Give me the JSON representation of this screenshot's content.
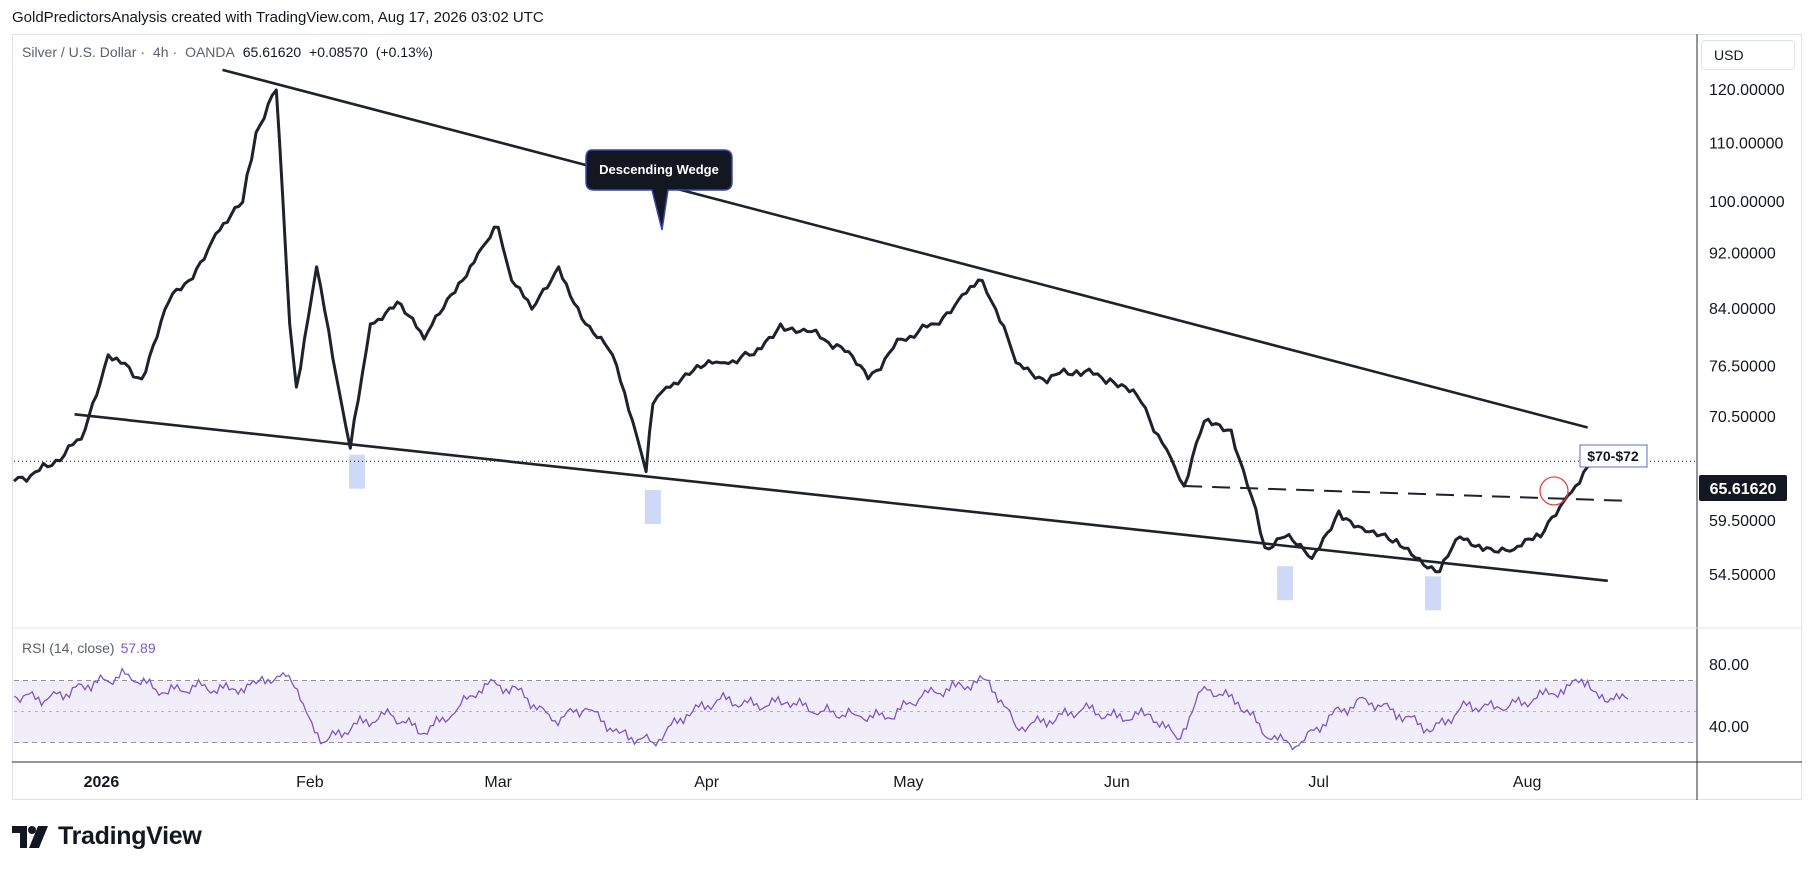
{
  "header": {
    "credit": "GoldPredictorsAnalysis created with TradingView.com, Aug 17, 2026 03:02 UTC"
  },
  "symbol": {
    "name": "Silver / U.S. Dollar",
    "interval": "4h",
    "source": "OANDA",
    "last": "65.61620",
    "change": "+0.08570",
    "change_pct": "(+0.13%)"
  },
  "currency": "USD",
  "annotations": {
    "wedge_label": "Descending Wedge",
    "target_label": "$70-$72"
  },
  "price_axis": {
    "ticks": [
      "120.00000",
      "110.00000",
      "100.00000",
      "92.00000",
      "84.00000",
      "76.50000",
      "70.50000",
      "59.50000",
      "54.50000"
    ],
    "last_price_label": "65.61620"
  },
  "rsi": {
    "legend": "RSI (14, close)",
    "value": "57.89",
    "ticks": [
      "80.00",
      "40.00"
    ]
  },
  "time_axis": {
    "labels": [
      "2026",
      "Feb",
      "Mar",
      "Apr",
      "May",
      "Jun",
      "Jul",
      "Aug"
    ]
  },
  "footer": {
    "brand": "TradingView",
    "logo_icon": "tradingview-logo-icon"
  },
  "colors": {
    "price_line": "#1e222d",
    "rsi_line": "#7e57c2",
    "rsi_band": "#7e57c2",
    "highlight": "#b9c9f5",
    "last_price_bg": "#131722",
    "target_border": "#5b6bd6",
    "breakout_circle": "#e53935"
  },
  "chart_data": [
    {
      "type": "line",
      "title": "Silver / U.S. Dollar · 4h · OANDA",
      "scale": "log",
      "ylim": [
        50.5,
        126
      ],
      "x": [
        "2025-12-19",
        "2025-12-24",
        "2025-12-29",
        "2026-01-02",
        "2026-01-07",
        "2026-01-11",
        "2026-01-14",
        "2026-01-18",
        "2026-01-22",
        "2026-01-24",
        "2026-01-27",
        "2026-01-28",
        "2026-01-29",
        "2026-01-30",
        "2026-02-02",
        "2026-02-05",
        "2026-02-07",
        "2026-02-10",
        "2026-02-14",
        "2026-02-18",
        "2026-02-22",
        "2026-02-26",
        "2026-03-01",
        "2026-03-03",
        "2026-03-06",
        "2026-03-10",
        "2026-03-14",
        "2026-03-18",
        "2026-03-21",
        "2026-03-23",
        "2026-03-24",
        "2026-03-26",
        "2026-03-30",
        "2026-04-03",
        "2026-04-08",
        "2026-04-12",
        "2026-04-16",
        "2026-04-21",
        "2026-04-25",
        "2026-04-30",
        "2026-05-05",
        "2026-05-09",
        "2026-05-12",
        "2026-05-14",
        "2026-05-17",
        "2026-05-21",
        "2026-05-26",
        "2026-05-31",
        "2026-06-04",
        "2026-06-09",
        "2026-06-11",
        "2026-06-14",
        "2026-06-18",
        "2026-06-21",
        "2026-06-23",
        "2026-06-26",
        "2026-06-30",
        "2026-07-04",
        "2026-07-08",
        "2026-07-12",
        "2026-07-16",
        "2026-07-19",
        "2026-07-22",
        "2026-07-26",
        "2026-07-30",
        "2026-08-03",
        "2026-08-07",
        "2026-08-10",
        "2026-08-13",
        "2026-08-16"
      ],
      "series": [
        {
          "values": [
            63.5,
            65.0,
            68.0,
            78.0,
            75.0,
            85.0,
            88.0,
            95.0,
            100.0,
            112.0,
            120.0,
            100.0,
            82.0,
            74.0,
            90.0,
            75.0,
            67.0,
            82.0,
            85.0,
            80.0,
            86.0,
            92.0,
            96.0,
            88.0,
            84.0,
            90.0,
            82.0,
            78.0,
            70.0,
            64.5,
            72.0,
            74.0,
            76.0,
            77.0,
            78.0,
            82.0,
            81.0,
            79.0,
            75.0,
            80.0,
            82.0,
            86.0,
            88.0,
            84.0,
            77.0,
            75.0,
            76.0,
            75.0,
            73.0,
            66.0,
            63.0,
            70.0,
            69.0,
            62.0,
            57.0,
            58.0,
            56.0,
            60.5,
            58.5,
            57.5,
            56.0,
            54.8,
            58.0,
            57.0,
            56.8,
            58.0,
            62.0,
            65.0,
            66.0,
            65.6
          ]
        }
      ],
      "xlabels": [
        "2026",
        "Feb",
        "Mar",
        "Apr",
        "May",
        "Jun",
        "Jul",
        "Aug"
      ],
      "trendlines": [
        {
          "style": "solid",
          "from": [
            "2026-01-19",
            124.0
          ],
          "to": [
            "2026-08-10",
            69.3
          ]
        },
        {
          "style": "solid",
          "from": [
            "2025-12-28",
            70.8
          ],
          "to": [
            "2026-08-13",
            54.0
          ]
        },
        {
          "style": "dashed",
          "from": [
            "2026-06-11",
            63.0
          ],
          "to": [
            "2026-08-16",
            61.5
          ]
        }
      ],
      "highlight_dates": [
        "2026-02-08",
        "2026-03-24",
        "2026-06-26",
        "2026-07-18"
      ],
      "grid": false
    },
    {
      "type": "line",
      "title": "RSI (14, close)",
      "ylim": [
        20,
        100
      ],
      "bands": [
        30,
        50,
        70
      ],
      "x": [
        "2025-12-19",
        "2025-12-24",
        "2025-12-30",
        "2026-01-05",
        "2026-01-10",
        "2026-01-15",
        "2026-01-20",
        "2026-01-24",
        "2026-01-28",
        "2026-01-31",
        "2026-02-03",
        "2026-02-08",
        "2026-02-13",
        "2026-02-18",
        "2026-02-23",
        "2026-02-27",
        "2026-03-04",
        "2026-03-09",
        "2026-03-14",
        "2026-03-19",
        "2026-03-24",
        "2026-03-29",
        "2026-04-03",
        "2026-04-08",
        "2026-04-13",
        "2026-04-18",
        "2026-04-23",
        "2026-04-28",
        "2026-05-03",
        "2026-05-08",
        "2026-05-13",
        "2026-05-17",
        "2026-05-22",
        "2026-05-27",
        "2026-06-01",
        "2026-06-06",
        "2026-06-10",
        "2026-06-14",
        "2026-06-19",
        "2026-06-24",
        "2026-06-28",
        "2026-07-03",
        "2026-07-08",
        "2026-07-13",
        "2026-07-18",
        "2026-07-23",
        "2026-07-28",
        "2026-08-02",
        "2026-08-06",
        "2026-08-10",
        "2026-08-13",
        "2026-08-16"
      ],
      "series": [
        {
          "name": "RSI (14, close)",
          "values": [
            60,
            58,
            67,
            74,
            62,
            66,
            64,
            68,
            75,
            55,
            30,
            42,
            48,
            36,
            52,
            68,
            64,
            44,
            52,
            36,
            30,
            48,
            58,
            54,
            56,
            50,
            48,
            46,
            60,
            66,
            70,
            40,
            44,
            52,
            46,
            48,
            32,
            66,
            56,
            32,
            28,
            48,
            58,
            48,
            38,
            54,
            52,
            58,
            64,
            70,
            56,
            58
          ]
        }
      ]
    }
  ]
}
